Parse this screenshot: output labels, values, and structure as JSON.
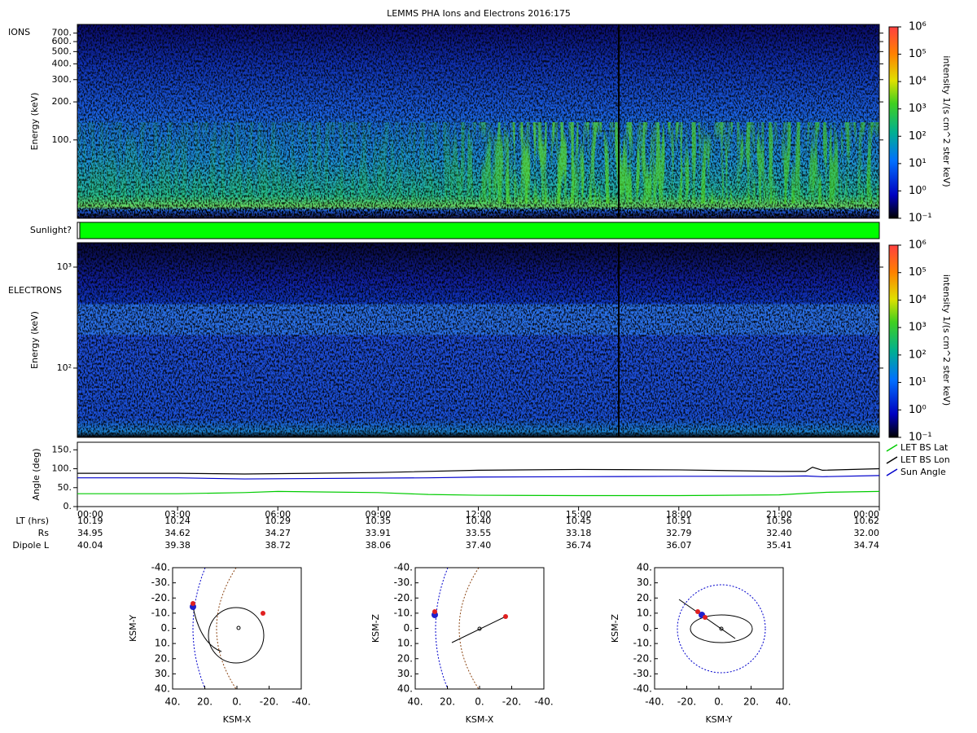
{
  "title": "LEMMS PHA Ions and Electrons  2016:175",
  "ions": {
    "label": "IONS",
    "ylabel": "Energy (keV)",
    "log": true,
    "ylim": [
      24,
      820
    ],
    "yticks": [
      {
        "value": 100,
        "label": "100."
      },
      {
        "value": 200,
        "label": "200."
      },
      {
        "value": 300,
        "label": "300."
      },
      {
        "value": 400,
        "label": "400."
      },
      {
        "value": 500,
        "label": "500."
      },
      {
        "value": 600,
        "label": "600."
      },
      {
        "value": 700,
        "label": "700."
      }
    ]
  },
  "sunlight": {
    "label": "Sunlight?",
    "color": "#00ff00"
  },
  "electrons": {
    "label": "ELECTRONS",
    "ylabel": "Energy (keV)",
    "log": true,
    "ylim": [
      20.6,
      1745
    ],
    "yticks": [
      {
        "value": 100,
        "label": "10²"
      },
      {
        "value": 1000,
        "label": "10³"
      }
    ]
  },
  "colorbar": {
    "label": "intensity 1/(s cm^2 ster keV)",
    "log": true,
    "lim": [
      0.1,
      1000000
    ],
    "ticks": [
      {
        "value": 0.1,
        "label": "10⁻¹"
      },
      {
        "value": 1,
        "label": "10⁰"
      },
      {
        "value": 10,
        "label": "10¹"
      },
      {
        "value": 100,
        "label": "10²"
      },
      {
        "value": 1000,
        "label": "10³"
      },
      {
        "value": 10000,
        "label": "10⁴"
      },
      {
        "value": 100000,
        "label": "10⁵"
      },
      {
        "value": 1000000,
        "label": "10⁶"
      }
    ]
  },
  "angle": {
    "type": "line",
    "ylabel": "Angle (deg)",
    "ylim": [
      0,
      170
    ],
    "xlim": [
      0,
      24
    ],
    "yticks": [
      {
        "value": 0,
        "label": "0."
      },
      {
        "value": 50,
        "label": "50."
      },
      {
        "value": 100,
        "label": "100."
      },
      {
        "value": 150,
        "label": "150."
      }
    ],
    "xticks": [
      {
        "value": 0,
        "label": "00:00"
      },
      {
        "value": 3,
        "label": "03:00"
      },
      {
        "value": 6,
        "label": "06:00"
      },
      {
        "value": 9,
        "label": "09:00"
      },
      {
        "value": 12,
        "label": "12:00"
      },
      {
        "value": 15,
        "label": "15:00"
      },
      {
        "value": 18,
        "label": "18:00"
      },
      {
        "value": 21,
        "label": "21:00"
      },
      {
        "value": 24,
        "label": "00:00"
      }
    ],
    "series": [
      {
        "name": "LET BS Lat",
        "color": "#00cc00",
        "x": [
          0,
          3,
          5,
          6,
          9,
          10.5,
          12,
          15,
          18,
          21,
          21.8,
          22.5,
          24
        ],
        "values": [
          34,
          34,
          37,
          40,
          37,
          32,
          30,
          29,
          29,
          31,
          35,
          38,
          40
        ]
      },
      {
        "name": "LET BS Lon",
        "color": "#000000",
        "x": [
          0,
          3,
          5,
          9,
          12,
          15,
          18,
          21,
          21.8,
          22,
          22.3,
          24
        ],
        "values": [
          88,
          88,
          86,
          90,
          96,
          98,
          97,
          93,
          93,
          104,
          96,
          100
        ]
      },
      {
        "name": "Sun Angle",
        "color": "#0000cc",
        "x": [
          0,
          3,
          5,
          10.5,
          12,
          15,
          18,
          21,
          21.8,
          22.3,
          24
        ],
        "values": [
          76,
          76,
          73,
          76,
          78,
          79,
          80,
          80,
          81,
          79,
          82
        ]
      }
    ]
  },
  "ephemeris": [
    {
      "name": "LT (hrs)",
      "values": [
        "10.19",
        "10.24",
        "10.29",
        "10.35",
        "10.40",
        "10.45",
        "10.51",
        "10.56",
        "10.62"
      ]
    },
    {
      "name": "Rs",
      "values": [
        "34.95",
        "34.62",
        "34.27",
        "33.91",
        "33.55",
        "33.18",
        "32.79",
        "32.40",
        "32.00"
      ]
    },
    {
      "name": "Dipole L",
      "values": [
        "40.04",
        "39.38",
        "38.72",
        "38.06",
        "37.40",
        "36.74",
        "36.07",
        "35.41",
        "34.74"
      ]
    }
  ],
  "orbits": [
    {
      "xlabel": "KSM-X",
      "ylabel": "KSM-Y",
      "xlim": [
        40,
        -40
      ],
      "ylim": [
        -40,
        40
      ],
      "xticks": [
        {
          "value": 40,
          "label": "40."
        },
        {
          "value": 20,
          "label": "20."
        },
        {
          "value": 0,
          "label": "0."
        },
        {
          "value": -20,
          "label": "-20."
        },
        {
          "value": -40,
          "label": "-40."
        }
      ],
      "yticks": [
        {
          "value": -40,
          "label": "-40."
        },
        {
          "value": -30,
          "label": "-30."
        },
        {
          "value": -20,
          "label": "-20."
        },
        {
          "value": -10,
          "label": "-10."
        },
        {
          "value": 0,
          "label": "0."
        },
        {
          "value": 10,
          "label": "10."
        },
        {
          "value": 20,
          "label": "20."
        },
        {
          "value": 30,
          "label": "30."
        },
        {
          "value": 40,
          "label": "40."
        }
      ]
    },
    {
      "xlabel": "KSM-X",
      "ylabel": "KSM-Z",
      "xlim": [
        40,
        -40
      ],
      "ylim": [
        -40,
        40
      ],
      "xticks": [
        {
          "value": 40,
          "label": "40."
        },
        {
          "value": 20,
          "label": "20."
        },
        {
          "value": 0,
          "label": "0."
        },
        {
          "value": -20,
          "label": "-20."
        },
        {
          "value": -40,
          "label": "-40."
        }
      ],
      "yticks": [
        {
          "value": 40,
          "label": "40."
        },
        {
          "value": 30,
          "label": "30."
        },
        {
          "value": 20,
          "label": "20."
        },
        {
          "value": 10,
          "label": "10."
        },
        {
          "value": 0,
          "label": "0."
        },
        {
          "value": -10,
          "label": "-10."
        },
        {
          "value": -20,
          "label": "-20."
        },
        {
          "value": -30,
          "label": "-30."
        },
        {
          "value": -40,
          "label": "-40."
        }
      ]
    },
    {
      "xlabel": "KSM-Y",
      "ylabel": "KSM-Z",
      "xlim": [
        -40,
        40
      ],
      "ylim": [
        40,
        -40
      ],
      "xticks": [
        {
          "value": -40,
          "label": "-40."
        },
        {
          "value": -20,
          "label": "-20."
        },
        {
          "value": 0,
          "label": "0."
        },
        {
          "value": 20,
          "label": "20."
        },
        {
          "value": 40,
          "label": "40."
        }
      ],
      "yticks": [
        {
          "value": 40,
          "label": "40."
        },
        {
          "value": 30,
          "label": "30."
        },
        {
          "value": 20,
          "label": "20."
        },
        {
          "value": 10,
          "label": "10."
        },
        {
          "value": 0,
          "label": "0."
        },
        {
          "value": -10,
          "label": "-10."
        },
        {
          "value": -20,
          "label": "-20."
        },
        {
          "value": -30,
          "label": "-30."
        },
        {
          "value": -40,
          "label": "-40."
        }
      ]
    }
  ]
}
